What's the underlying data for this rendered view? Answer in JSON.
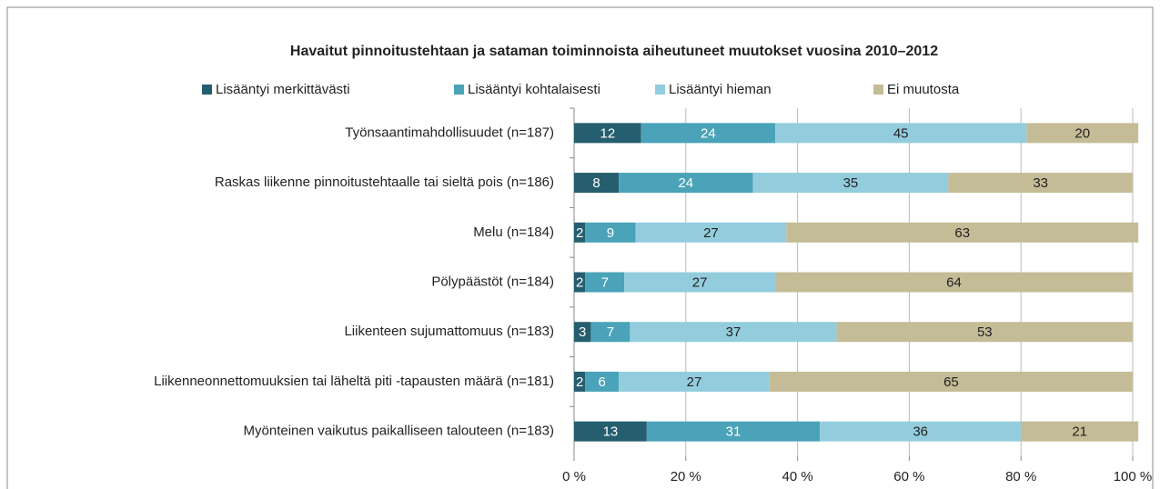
{
  "chart_data": {
    "type": "stacked_barh",
    "title": "Havaitut pinnoitustehtaan ja sataman toiminnoista aiheutuneet muutokset vuosina 2010–2012",
    "categories": [
      "Työnsaantimahdollisuudet (n=187)",
      "Raskas liikenne pinnoitustehtaalle tai sieltä pois (n=186)",
      "Melu (n=184)",
      "Pölypäästöt (n=184)",
      "Liikenteen sujumattomuus (n=183)",
      "Liikenneonnettomuuksien tai läheltä piti -tapausten määrä (n=181)",
      "Myönteinen vaikutus paikalliseen talouteen (n=183)"
    ],
    "series": [
      {
        "name": "Lisääntyi merkittävästi",
        "color": "#255e6e",
        "values": [
          12,
          8,
          2,
          2,
          3,
          2,
          13
        ]
      },
      {
        "name": "Lisääntyi kohtalaisesti",
        "color": "#4aa3b8",
        "values": [
          24,
          24,
          9,
          7,
          7,
          6,
          31
        ]
      },
      {
        "name": "Lisääntyi hieman",
        "color": "#93cddd",
        "values": [
          45,
          35,
          27,
          27,
          37,
          27,
          36
        ]
      },
      {
        "name": "Ei muutosta",
        "color": "#c4bc96",
        "values": [
          20,
          33,
          63,
          64,
          53,
          65,
          21
        ]
      }
    ],
    "xlim": [
      0,
      100
    ],
    "xticks": [
      {
        "value": 0,
        "label": "0 %"
      },
      {
        "value": 20,
        "label": "20 %"
      },
      {
        "value": 40,
        "label": "40 %"
      },
      {
        "value": 60,
        "label": "60 %"
      },
      {
        "value": 80,
        "label": "80 %"
      },
      {
        "value": 100,
        "label": "100 %"
      }
    ],
    "grid": true,
    "legend": "top"
  }
}
